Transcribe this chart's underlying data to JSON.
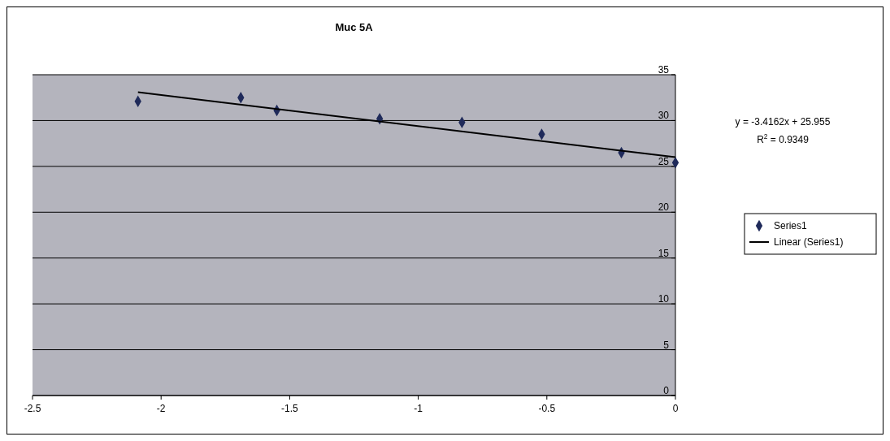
{
  "chart_data": {
    "type": "scatter",
    "title": "Muc 5A",
    "series": [
      {
        "name": "Series1",
        "type": "scatter",
        "color": "#1f2a5a",
        "marker": "diamond",
        "x": [
          -2.09,
          -1.69,
          -1.55,
          -1.15,
          -0.83,
          -0.52,
          -0.21,
          0
        ],
        "values": [
          32.1,
          32.5,
          31.1,
          30.2,
          29.8,
          28.5,
          26.5,
          25.4
        ]
      },
      {
        "name": "Linear (Series1)",
        "type": "line",
        "color": "#000000",
        "marker": "none",
        "line_style": "solid",
        "x": [
          -2.09,
          0
        ],
        "values": [
          33.1,
          26.0
        ]
      }
    ],
    "xlim": [
      -2.5,
      0
    ],
    "xticks": [
      -2.5,
      -2,
      -1.5,
      -1,
      -0.5,
      0
    ],
    "ylim": [
      0,
      35
    ],
    "yticks": [
      0,
      5,
      10,
      15,
      20,
      25,
      30,
      35
    ],
    "grid": "y",
    "legend": "right",
    "annotations": [
      "y = -3.4162x + 25.955",
      "R$^{2}$ = 0.9349"
    ]
  }
}
